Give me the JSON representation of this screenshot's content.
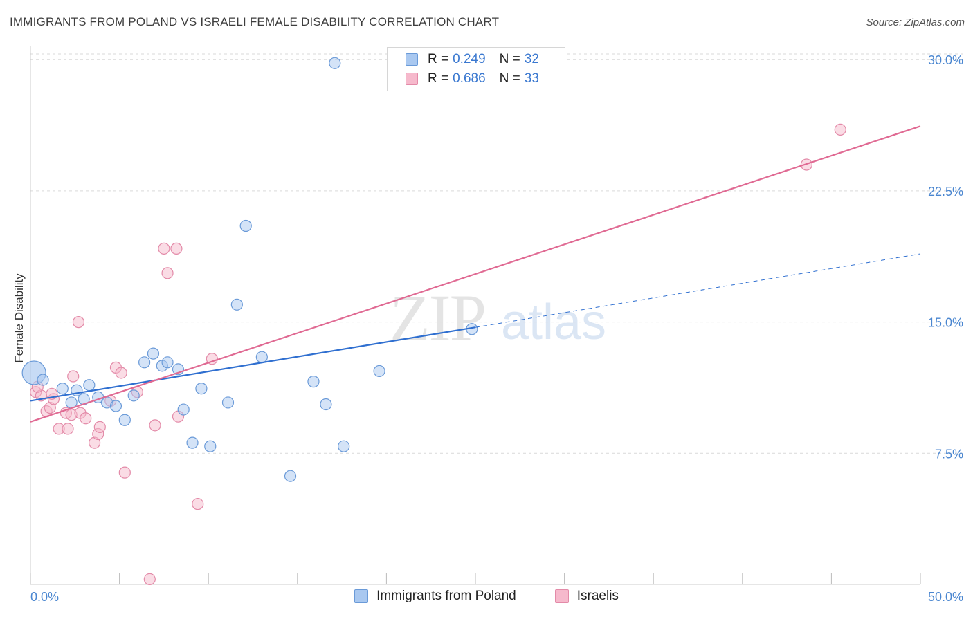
{
  "header": {
    "title": "IMMIGRANTS FROM POLAND VS ISRAELI FEMALE DISABILITY CORRELATION CHART",
    "source": "Source: ZipAtlas.com"
  },
  "watermark": {
    "zip": "ZIP",
    "atlas": "atlas"
  },
  "colors": {
    "blue_fill": "#a9c8f0",
    "blue_stroke": "#6a9ad8",
    "blue_line": "#2f6fd0",
    "pink_fill": "#f6b9cc",
    "pink_stroke": "#e38aa8",
    "pink_line": "#e06a93",
    "tick_label": "#4a86d0",
    "grid": "#d9d9d9"
  },
  "legend": {
    "rows": [
      {
        "r_label": "R = ",
        "r_value": "0.249",
        "n_label": "N = ",
        "n_value": "32",
        "series": "blue"
      },
      {
        "r_label": "R = ",
        "r_value": "0.686",
        "n_label": "N = ",
        "n_value": "33",
        "series": "pink"
      }
    ]
  },
  "bottom_legend": {
    "blue": "Immigrants from Poland",
    "pink": "Israelis"
  },
  "chart_data": {
    "type": "scatter",
    "title": "IMMIGRANTS FROM POLAND VS ISRAELI FEMALE DISABILITY CORRELATION CHART",
    "xlabel": "",
    "ylabel": "Female Disability",
    "xlim": [
      0,
      50
    ],
    "ylim": [
      0,
      30.8
    ],
    "x_tick_labels": [
      {
        "value": 0,
        "label": "0.0%"
      },
      {
        "value": 50,
        "label": "50.0%"
      }
    ],
    "x_minor_ticks": [
      0,
      5,
      10,
      15,
      20,
      25,
      30,
      35,
      40,
      45,
      50
    ],
    "y_ticks": [
      {
        "value": 7.5,
        "label": "7.5%"
      },
      {
        "value": 15.0,
        "label": "15.0%"
      },
      {
        "value": 22.5,
        "label": "22.5%"
      },
      {
        "value": 30.0,
        "label": "30.0%"
      }
    ],
    "grid": true,
    "series": [
      {
        "name": "Immigrants from Poland",
        "color": "blue",
        "points": [
          [
            0.2,
            12.1
          ],
          [
            0.7,
            11.7
          ],
          [
            1.8,
            11.2
          ],
          [
            2.6,
            11.1
          ],
          [
            2.3,
            10.4
          ],
          [
            3.0,
            10.6
          ],
          [
            3.3,
            11.4
          ],
          [
            3.8,
            10.7
          ],
          [
            4.3,
            10.4
          ],
          [
            4.8,
            10.2
          ],
          [
            5.3,
            9.4
          ],
          [
            5.8,
            10.8
          ],
          [
            6.4,
            12.7
          ],
          [
            6.9,
            13.2
          ],
          [
            7.4,
            12.5
          ],
          [
            7.7,
            12.7
          ],
          [
            8.3,
            12.3
          ],
          [
            8.6,
            10.0
          ],
          [
            9.1,
            8.1
          ],
          [
            9.6,
            11.2
          ],
          [
            10.1,
            7.9
          ],
          [
            11.1,
            10.4
          ],
          [
            11.6,
            16.0
          ],
          [
            12.1,
            20.5
          ],
          [
            13.0,
            13.0
          ],
          [
            14.6,
            6.2
          ],
          [
            15.9,
            11.6
          ],
          [
            16.6,
            10.3
          ],
          [
            17.1,
            29.8
          ],
          [
            17.6,
            7.9
          ],
          [
            19.6,
            12.2
          ],
          [
            24.8,
            14.6
          ]
        ],
        "trend": {
          "x0": 0,
          "y0": 10.5,
          "x1": 25.0,
          "y1": 14.7,
          "dashed_to_x": 50,
          "dashed_to_y": 18.9
        }
      },
      {
        "name": "Israelis",
        "color": "pink",
        "points": [
          [
            0.3,
            11.0
          ],
          [
            0.6,
            10.8
          ],
          [
            0.9,
            9.9
          ],
          [
            1.1,
            10.1
          ],
          [
            1.3,
            10.6
          ],
          [
            1.6,
            8.9
          ],
          [
            2.0,
            9.8
          ],
          [
            2.1,
            8.9
          ],
          [
            2.3,
            9.7
          ],
          [
            2.4,
            11.9
          ],
          [
            2.7,
            15.0
          ],
          [
            2.8,
            9.8
          ],
          [
            3.1,
            9.5
          ],
          [
            3.6,
            8.1
          ],
          [
            3.8,
            8.6
          ],
          [
            3.9,
            9.0
          ],
          [
            4.5,
            10.5
          ],
          [
            4.8,
            12.4
          ],
          [
            5.1,
            12.1
          ],
          [
            5.3,
            6.4
          ],
          [
            6.0,
            11.0
          ],
          [
            6.7,
            0.3
          ],
          [
            7.0,
            9.1
          ],
          [
            7.5,
            19.2
          ],
          [
            7.7,
            17.8
          ],
          [
            8.2,
            19.2
          ],
          [
            8.3,
            9.6
          ],
          [
            9.4,
            4.6
          ],
          [
            10.2,
            12.9
          ],
          [
            43.6,
            24.0
          ],
          [
            45.5,
            26.0
          ],
          [
            1.2,
            10.9
          ],
          [
            0.4,
            11.3
          ]
        ],
        "trend": {
          "x0": 0,
          "y0": 9.3,
          "x1": 50,
          "y1": 26.2
        }
      }
    ]
  }
}
